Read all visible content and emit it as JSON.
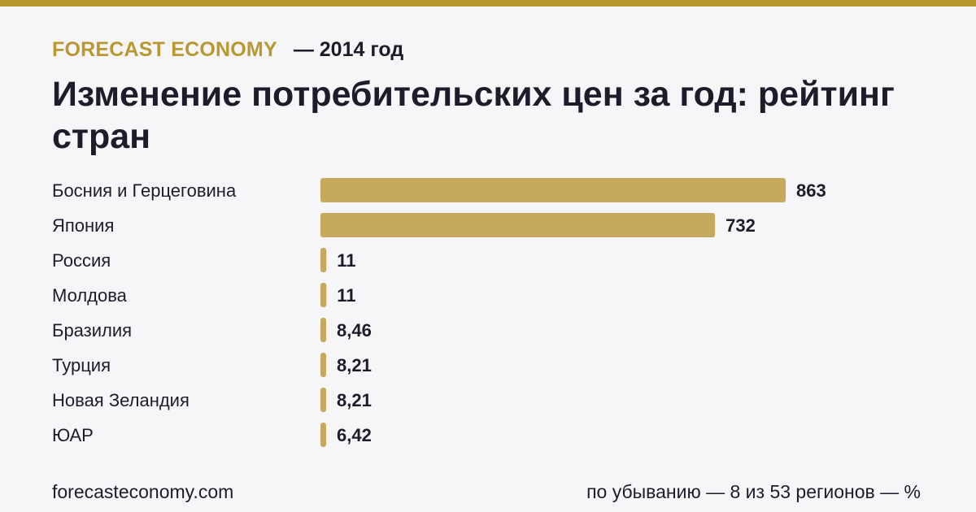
{
  "header": {
    "brand": "FORECAST ECONOMY",
    "period": "— 2014 год",
    "title": "Изменение потребительских цен за год: рейтинг стран"
  },
  "footer": {
    "site": "forecasteconomy.com",
    "note": "по убыванию — 8 из 53 регионов — %"
  },
  "colors": {
    "accent": "#b9982f",
    "bar": "#c6a95c",
    "text": "#1c1c2b",
    "background": "#f6f6f9"
  },
  "chart_data": {
    "type": "bar",
    "orientation": "horizontal",
    "categories": [
      "Босния и Герцеговина",
      "Япония",
      "Россия",
      "Молдова",
      "Бразилия",
      "Турция",
      "Новая Зеландия",
      "ЮАР"
    ],
    "values": [
      863,
      732,
      11,
      11,
      8.46,
      8.21,
      8.21,
      6.42
    ],
    "value_labels": [
      "863",
      "732",
      "11",
      "11",
      "8,46",
      "8,21",
      "8,21",
      "6,42"
    ],
    "xlim": [
      0,
      863
    ],
    "grid": false,
    "legend": "none"
  }
}
